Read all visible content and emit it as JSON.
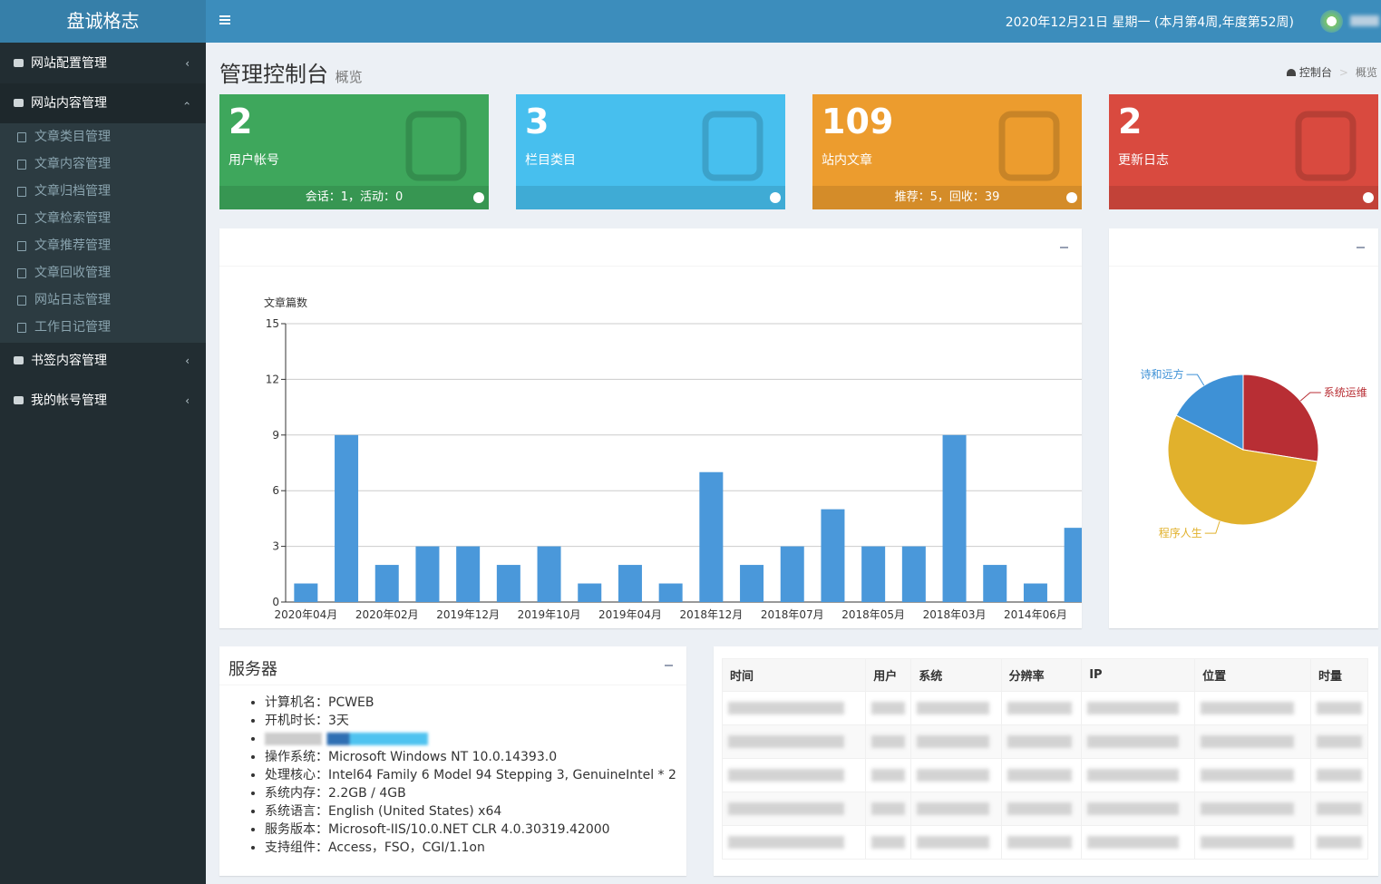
{
  "sidebar": {
    "brand": "盘诚格志",
    "menu": [
      {
        "label": "网站配置管理"
      },
      {
        "label": "网站内容管理",
        "children": [
          "文章类目管理",
          "文章内容管理",
          "文章归档管理",
          "文章检索管理",
          "文章推荐管理",
          "文章回收管理",
          "网站日志管理",
          "工作日记管理"
        ]
      },
      {
        "label": "书签内容管理"
      },
      {
        "label": "我的帐号管理"
      }
    ]
  },
  "header": {
    "date": "2020年12月21日 星期一 (本月第4周,年度第52周)"
  },
  "page": {
    "title": "管理控制台",
    "subtitle": "概览",
    "breadcrumb": [
      "控制台",
      "概览"
    ]
  },
  "stats": [
    {
      "value": 2,
      "label": "用户帐号",
      "footer": "会话：1，活动：0",
      "color": "#3ea75c"
    },
    {
      "value": 3,
      "label": "栏目类目",
      "color": "#47bfee"
    },
    {
      "value": 109,
      "label": "站内文章",
      "footer": "推荐：5，回收：39",
      "color": "#ec9c2e"
    },
    {
      "value": 2,
      "label": "更新日志",
      "color": "#d94a3f"
    }
  ],
  "server": {
    "title": "服务器",
    "items": [
      "计算机名：PCWEB",
      "开机时长：3天",
      "操作系统：Microsoft Windows NT 10.0.14393.0",
      "处理核心：Intel64 Family 6 Model 94 Stepping 3, GenuineIntel * 2",
      "系统内存：2.2GB / 4GB",
      "系统语言：English (United States) x64",
      "服务版本：Microsoft-IIS/10.0.NET CLR 4.0.30319.42000",
      "支持组件：Access，FSO，CGI/1.1on"
    ]
  },
  "table": {
    "headers": [
      "时间",
      "用户",
      "系统",
      "分辨率",
      "IP",
      "位置",
      "时量"
    ]
  },
  "chart_data": [
    {
      "type": "bar",
      "y_label": "文章篇数",
      "categories": [
        "2020年04月",
        null,
        "2020年02月",
        null,
        "2019年12月",
        null,
        "2019年10月",
        null,
        "2019年04月",
        null,
        "2018年12月",
        null,
        "2018年07月",
        null,
        "2018年05月",
        null,
        "2018年03月",
        null,
        "2014年06月",
        null
      ],
      "values": [
        1,
        9,
        2,
        3,
        3,
        2,
        3,
        1,
        2,
        1,
        7,
        2,
        3,
        5,
        3,
        3,
        9,
        2,
        1,
        4
      ],
      "color": "#4a98da",
      "ylim": [
        0,
        15
      ],
      "yticks": [
        0,
        3,
        6,
        9,
        12,
        15
      ],
      "grid": true
    },
    {
      "type": "pie",
      "categories": [
        "系统运维",
        "程序人生",
        "诗和远方"
      ],
      "values": [
        30,
        60,
        19
      ],
      "colors": [
        "#b82e34",
        "#e1b12c",
        "#3e91d6"
      ]
    }
  ]
}
